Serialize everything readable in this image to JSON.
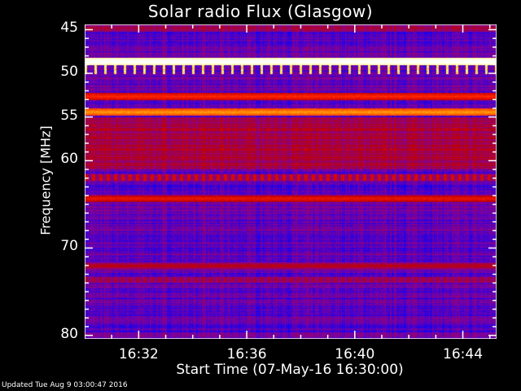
{
  "chart_data": {
    "type": "heatmap",
    "title": "Solar radio Flux (Glasgow)",
    "xlabel": "Start Time (07-May-16 16:30:00)",
    "ylabel": "Frequency [MHz]",
    "x_range": [
      "16:30:00",
      "16:45:15"
    ],
    "x_ticks": [
      "16:32",
      "16:36",
      "16:40",
      "16:44"
    ],
    "y_range": [
      44.4,
      80.4
    ],
    "y_reversed": true,
    "y_ticks": [
      "45",
      "50",
      "55",
      "60",
      "70",
      "80"
    ],
    "colormap": [
      "#000080",
      "#0000ff",
      "#8000a0",
      "#c00000",
      "#ff2000",
      "#ff9000",
      "#ffff80",
      "#ffffff"
    ],
    "features_mhz": [
      {
        "freq": 48.6,
        "intensity": 1.0
      },
      {
        "freq": 49.5,
        "intensity": 0.75,
        "pattern": "spikes"
      },
      {
        "freq": 52.6,
        "intensity": 0.55
      },
      {
        "freq": 54.4,
        "intensity": 0.7
      },
      {
        "freq": 59.6,
        "intensity": 0.35
      },
      {
        "freq": 61.9,
        "intensity": 0.45,
        "pattern": "dotted"
      },
      {
        "freq": 64.3,
        "intensity": 0.5
      },
      {
        "freq": 72.0,
        "intensity": 0.4
      },
      {
        "freq": 73.6,
        "intensity": 0.35,
        "pattern": "dotted"
      }
    ]
  },
  "footer": {
    "updated": "Updated Tue Aug  9 03:00:47 2016"
  }
}
